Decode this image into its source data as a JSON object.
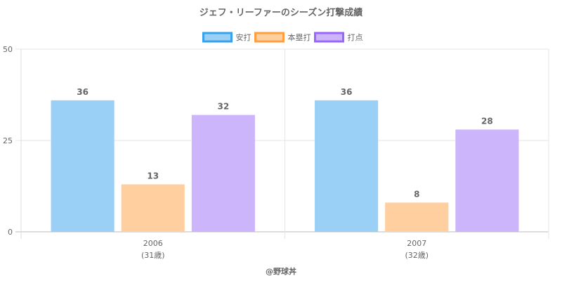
{
  "chart_data": {
    "type": "bar",
    "title": "ジェフ・リーファーのシーズン打撃成績",
    "categories": [
      "2006",
      "2007"
    ],
    "category_sublabels": [
      "(31歳)",
      "(32歳)"
    ],
    "series": [
      {
        "name": "安打",
        "values": [
          36,
          36
        ],
        "fill": "#9ad0f5",
        "stroke": "#36a2eb"
      },
      {
        "name": "本塁打",
        "values": [
          13,
          8
        ],
        "fill": "#ffcf9f",
        "stroke": "#ff9f40"
      },
      {
        "name": "打点",
        "values": [
          32,
          28
        ],
        "fill": "#cdb5fc",
        "stroke": "#9966ff"
      }
    ],
    "ylim": [
      0,
      50
    ],
    "yticks": [
      0,
      25,
      50
    ],
    "grid": true,
    "legend_position": "top-center",
    "credit": "@野球丼"
  }
}
